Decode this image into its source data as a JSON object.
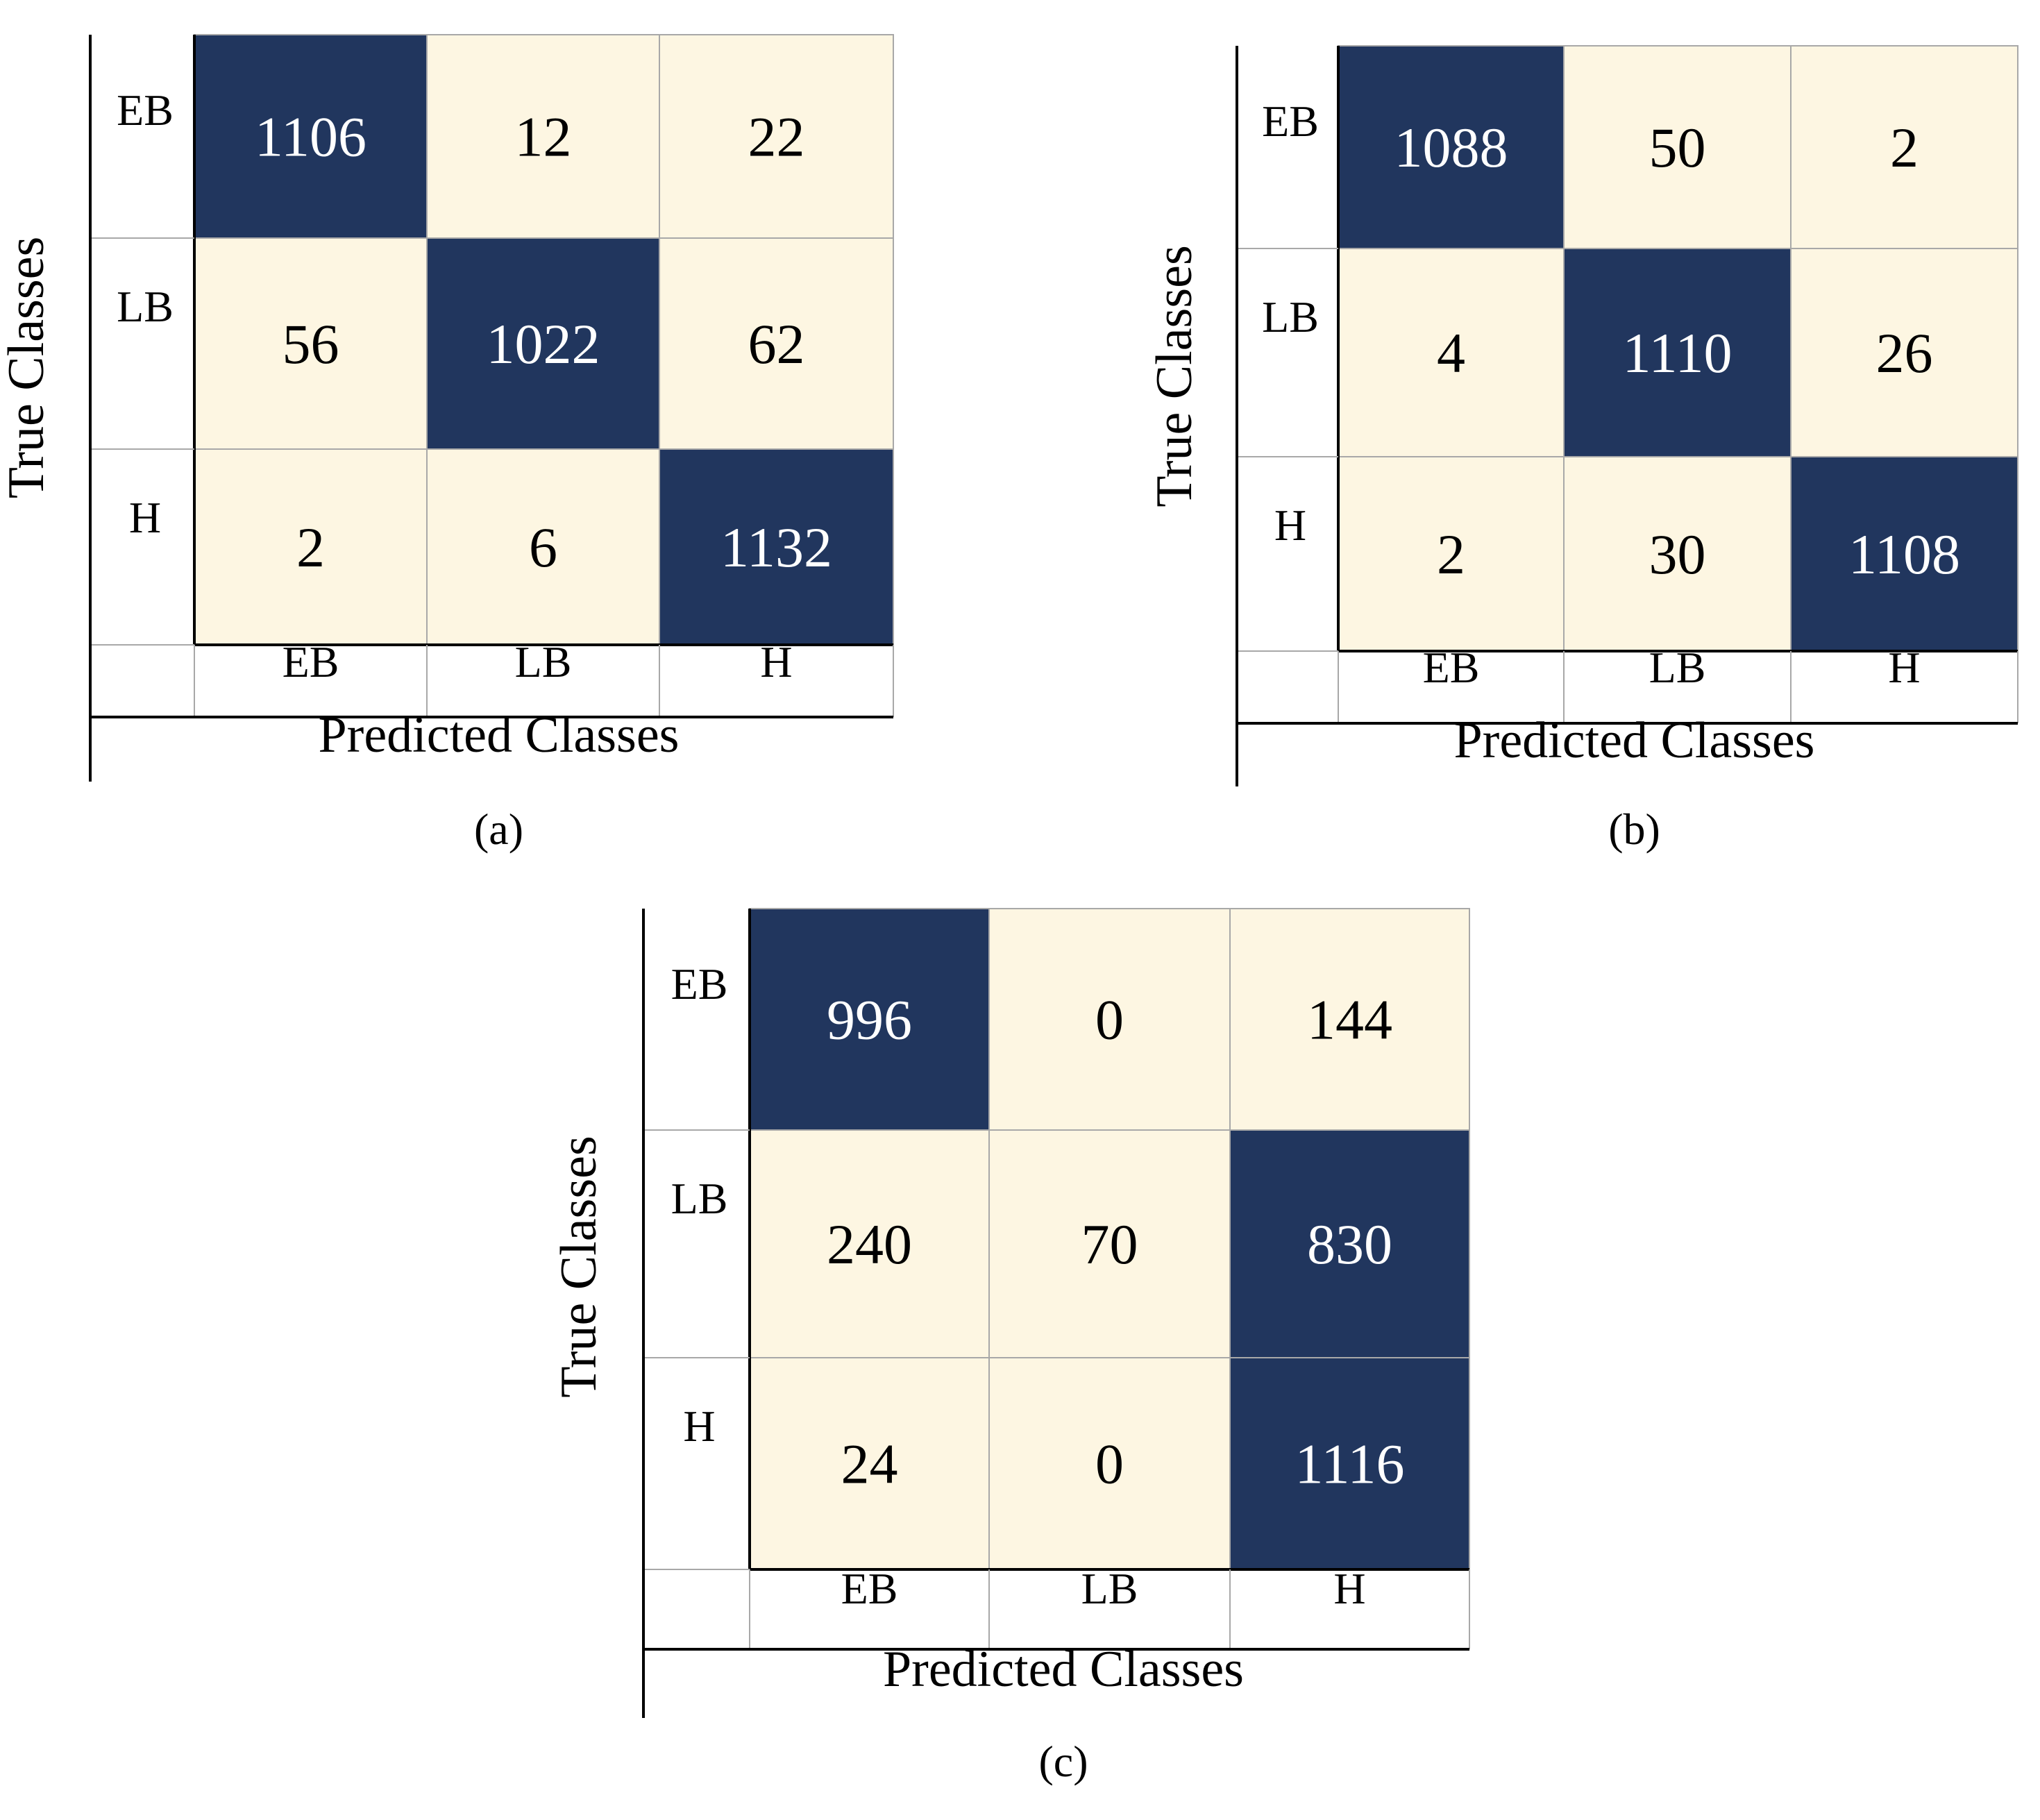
{
  "colors": {
    "high": "#21365e",
    "low": "#fdf6e2",
    "high_text": "#ffffff",
    "low_text": "#000000",
    "grid": "#a8a8a8",
    "axis": "#000000"
  },
  "chart_data": [
    {
      "type": "heatmap",
      "panel_label": "(a)",
      "xlabel": "Predicted Classes",
      "ylabel": "True Classes",
      "x_categories": [
        "EB",
        "LB",
        "H"
      ],
      "y_categories": [
        "EB",
        "LB",
        "H"
      ],
      "values": [
        [
          1106,
          12,
          22
        ],
        [
          56,
          1022,
          62
        ],
        [
          2,
          6,
          1132
        ]
      ]
    },
    {
      "type": "heatmap",
      "panel_label": "(b)",
      "xlabel": "Predicted Classes",
      "ylabel": "True Classes",
      "x_categories": [
        "EB",
        "LB",
        "H"
      ],
      "y_categories": [
        "EB",
        "LB",
        "H"
      ],
      "values": [
        [
          1088,
          50,
          2
        ],
        [
          4,
          1110,
          26
        ],
        [
          2,
          30,
          1108
        ]
      ]
    },
    {
      "type": "heatmap",
      "panel_label": "(c)",
      "xlabel": "Predicted Classes",
      "ylabel": "True Classes",
      "x_categories": [
        "EB",
        "LB",
        "H"
      ],
      "y_categories": [
        "EB",
        "LB",
        "H"
      ],
      "values": [
        [
          996,
          0,
          144
        ],
        [
          240,
          70,
          830
        ],
        [
          24,
          0,
          1116
        ]
      ]
    }
  ]
}
